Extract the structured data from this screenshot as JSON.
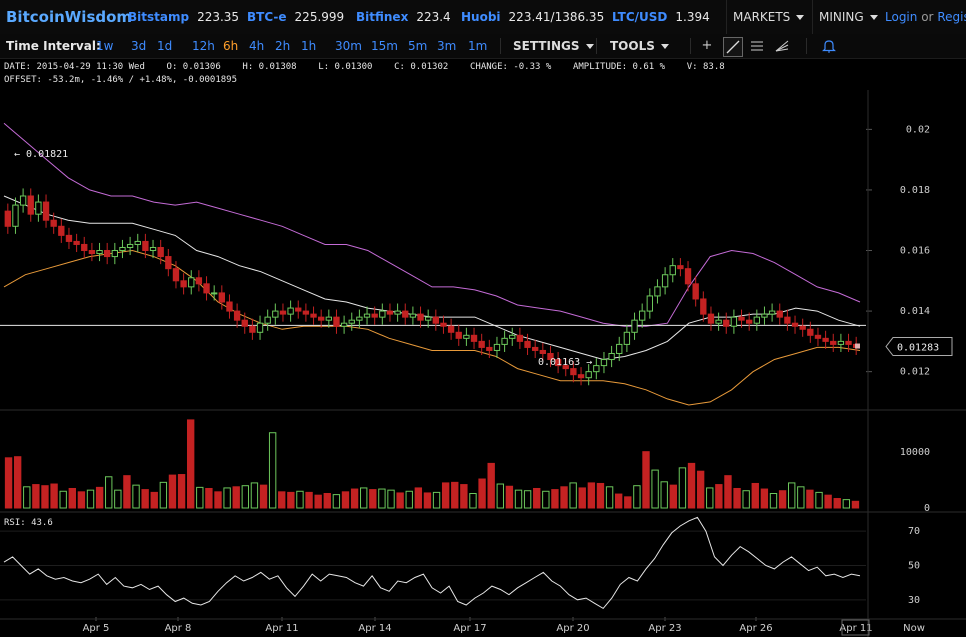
{
  "header": {
    "brand": "BitcoinWisdom",
    "tickers": [
      {
        "name": "Bitstamp",
        "price": "223.35"
      },
      {
        "name": "BTC-e",
        "price": "225.999"
      },
      {
        "name": "Bitfinex",
        "price": "223.4"
      },
      {
        "name": "Huobi",
        "price": "223.41/1386.35"
      },
      {
        "name": "LTC/USD",
        "price": "1.394"
      }
    ],
    "markets_label": "MARKETS",
    "mining_label": "MINING",
    "login_label": "Login",
    "or_label": "or",
    "register_label": "Regis"
  },
  "toolbar": {
    "time_interval_label": "Time Interval:",
    "intervals": [
      "1w",
      "3d",
      "1d",
      "12h",
      "6h",
      "4h",
      "2h",
      "1h",
      "30m",
      "15m",
      "5m",
      "3m",
      "1m"
    ],
    "active_interval": "6h",
    "settings_label": "SETTINGS",
    "tools_label": "TOOLS",
    "icons": [
      "crosshair-icon",
      "trendline-icon",
      "horizontal-lines-icon",
      "fan-icon",
      "alert-bell-icon"
    ]
  },
  "info": {
    "line1": "DATE: 2015-04-29 11:30 Wed    O: 0.01306    H: 0.01308    L: 0.01300    C: 0.01302    CHANGE: -0.33 %    AMPLITUDE: 0.61 %    V: 83.8",
    "line2": "OFFSET: -53.2m, -1.46% / +1.48%, -0.0001895"
  },
  "rsi_label": "RSI: 43.6",
  "colors": {
    "up": "#6dc85c",
    "down": "#c42222",
    "upper_band": "#c46bd6",
    "lower_band": "#e89a3a",
    "ma": "#e6e6e6",
    "accent": "#3f8cff"
  },
  "chart_data": {
    "type": "candlestick",
    "y_ticks": [
      "0.02",
      "0.018",
      "0.016",
      "0.014",
      "0.012"
    ],
    "ylim": [
      0.0108,
      0.0213
    ],
    "x_ticks": [
      "Apr 5",
      "Apr 8",
      "Apr 11",
      "Apr 14",
      "Apr 17",
      "Apr 20",
      "Apr 23",
      "Apr 26",
      "Apr 11",
      "Now"
    ],
    "annotations": {
      "high": "← 0.01821",
      "low": "0.01163 →",
      "last_price": "0.01283",
      "horizontal_line": 0.01353
    },
    "close": [
      0.0168,
      0.0175,
      0.0178,
      0.0172,
      0.0176,
      0.017,
      0.0168,
      0.0165,
      0.0163,
      0.0162,
      0.016,
      0.0159,
      0.016,
      0.0158,
      0.016,
      0.0161,
      0.0162,
      0.0163,
      0.016,
      0.0161,
      0.0158,
      0.0154,
      0.015,
      0.0148,
      0.0151,
      0.0149,
      0.0146,
      0.0146,
      0.0143,
      0.014,
      0.0137,
      0.0135,
      0.0133,
      0.0136,
      0.0138,
      0.014,
      0.0139,
      0.0141,
      0.014,
      0.0139,
      0.0138,
      0.0137,
      0.0138,
      0.0135,
      0.0136,
      0.0137,
      0.0138,
      0.0139,
      0.0138,
      0.014,
      0.0139,
      0.014,
      0.0138,
      0.0139,
      0.0137,
      0.0138,
      0.0136,
      0.0135,
      0.0133,
      0.0131,
      0.0132,
      0.013,
      0.0128,
      0.0127,
      0.0129,
      0.0131,
      0.0132,
      0.013,
      0.0128,
      0.0127,
      0.0126,
      0.0124,
      0.0122,
      0.0121,
      0.0119,
      0.0118,
      0.012,
      0.0122,
      0.0124,
      0.0126,
      0.0129,
      0.0133,
      0.0137,
      0.014,
      0.0145,
      0.0148,
      0.0152,
      0.0155,
      0.0154,
      0.0149,
      0.0144,
      0.0139,
      0.0136,
      0.0137,
      0.0135,
      0.0138,
      0.0137,
      0.0136,
      0.0138,
      0.0139,
      0.014,
      0.0138,
      0.0136,
      0.0135,
      0.0134,
      0.0132,
      0.0131,
      0.013,
      0.0129,
      0.013,
      0.0129,
      0.0128
    ],
    "upper_band": [
      0.0202,
      0.0196,
      0.019,
      0.0184,
      0.018,
      0.0178,
      0.0178,
      0.0176,
      0.0175,
      0.0176,
      0.0174,
      0.0172,
      0.017,
      0.0168,
      0.0165,
      0.0162,
      0.0162,
      0.016,
      0.0156,
      0.0152,
      0.0148,
      0.0148,
      0.0147,
      0.0145,
      0.0142,
      0.0141,
      0.014,
      0.0138,
      0.0136,
      0.0135,
      0.0135,
      0.0136,
      0.0148,
      0.0158,
      0.016,
      0.0159,
      0.0156,
      0.0152,
      0.0148,
      0.0146,
      0.0143
    ],
    "middle_band": [
      0.0178,
      0.0175,
      0.0172,
      0.017,
      0.0169,
      0.0169,
      0.0169,
      0.0167,
      0.0165,
      0.016,
      0.0158,
      0.0155,
      0.0153,
      0.015,
      0.0147,
      0.0144,
      0.0143,
      0.0141,
      0.014,
      0.0139,
      0.0138,
      0.0138,
      0.0138,
      0.0135,
      0.0132,
      0.013,
      0.0128,
      0.0126,
      0.0124,
      0.0125,
      0.0127,
      0.013,
      0.0136,
      0.0138,
      0.0138,
      0.0139,
      0.0139,
      0.0141,
      0.014,
      0.0137,
      0.0135
    ],
    "lower_band": [
      0.0148,
      0.0152,
      0.0154,
      0.0156,
      0.0158,
      0.0159,
      0.016,
      0.0158,
      0.0155,
      0.015,
      0.0143,
      0.0139,
      0.0136,
      0.0134,
      0.0135,
      0.0135,
      0.0135,
      0.0134,
      0.0131,
      0.0129,
      0.0127,
      0.0127,
      0.0127,
      0.0125,
      0.0121,
      0.0119,
      0.0117,
      0.0117,
      0.0117,
      0.0116,
      0.0114,
      0.0111,
      0.0109,
      0.011,
      0.0114,
      0.012,
      0.0124,
      0.0126,
      0.0128,
      0.0128,
      0.0127
    ],
    "volume": {
      "ticks": [
        "10000",
        "0"
      ],
      "ylim": [
        0,
        16500
      ],
      "values": [
        9000,
        9200,
        3800,
        4200,
        4000,
        4300,
        3000,
        3500,
        2900,
        3200,
        3700,
        5600,
        3200,
        5800,
        4100,
        3300,
        2800,
        4600,
        5900,
        6000,
        15800,
        3700,
        3500,
        2900,
        3600,
        3800,
        4000,
        4500,
        4100,
        13500,
        2900,
        2800,
        3000,
        2800,
        2300,
        2600,
        2400,
        2900,
        3400,
        3600,
        3300,
        3400,
        3200,
        2700,
        3000,
        3600,
        2700,
        2800,
        4500,
        4600,
        4200,
        2600,
        5200,
        8000,
        4300,
        3900,
        3200,
        3100,
        3500,
        3000,
        3300,
        3800,
        4500,
        3600,
        4500,
        4400,
        3800,
        2500,
        2000,
        4000,
        10100,
        6800,
        4700,
        4100,
        7200,
        8000,
        6600,
        3600,
        4200,
        5800,
        3500,
        3100,
        4400,
        3400,
        2600,
        3100,
        4500,
        3800,
        3200,
        2800,
        2300,
        1700,
        1500,
        1200
      ]
    },
    "rsi": {
      "ticks": [
        "70",
        "50",
        "30"
      ],
      "ylim": [
        20,
        80
      ],
      "values": [
        52,
        55,
        50,
        45,
        48,
        44,
        42,
        43,
        41,
        40,
        42,
        45,
        39,
        43,
        38,
        37,
        39,
        36,
        38,
        33,
        29,
        31,
        28,
        27,
        29,
        35,
        40,
        44,
        41,
        43,
        46,
        42,
        44,
        37,
        32,
        38,
        45,
        41,
        45,
        44,
        43,
        40,
        38,
        44,
        37,
        35,
        41,
        40,
        43,
        45,
        37,
        34,
        38,
        29,
        27,
        31,
        34,
        38,
        36,
        33,
        37,
        40,
        43,
        46,
        41,
        38,
        33,
        30,
        31,
        28,
        25,
        31,
        39,
        43,
        41,
        48,
        54,
        62,
        69,
        73,
        76,
        78,
        70,
        55,
        50,
        56,
        61,
        58,
        54,
        50,
        48,
        52,
        55,
        51,
        47,
        49,
        44,
        45,
        43,
        45,
        44
      ]
    }
  }
}
